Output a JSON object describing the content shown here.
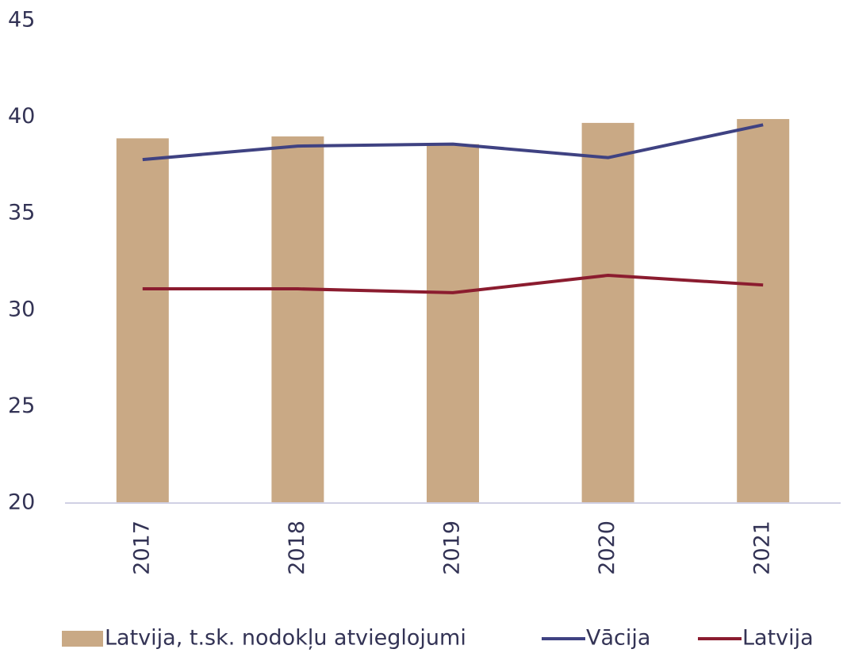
{
  "chart_data": {
    "type": "bar",
    "categories": [
      "2017",
      "2018",
      "2019",
      "2020",
      "2021"
    ],
    "series": [
      {
        "name": "Latvija, t.sk. nodokļu atvieglojumi",
        "type": "bar",
        "color": "#c9a985",
        "values": [
          38.9,
          39.0,
          38.6,
          39.7,
          39.9
        ]
      },
      {
        "name": "Vācija",
        "type": "line",
        "color": "#3f4282",
        "values": [
          37.8,
          38.5,
          38.6,
          37.9,
          39.6
        ]
      },
      {
        "name": "Latvija",
        "type": "line",
        "color": "#8b1c2f",
        "values": [
          31.1,
          31.1,
          30.9,
          31.8,
          31.3
        ]
      }
    ],
    "ylim": [
      20,
      45
    ],
    "yticks": [
      20,
      25,
      30,
      35,
      40,
      45
    ],
    "grid": false,
    "legend": "bottom"
  }
}
